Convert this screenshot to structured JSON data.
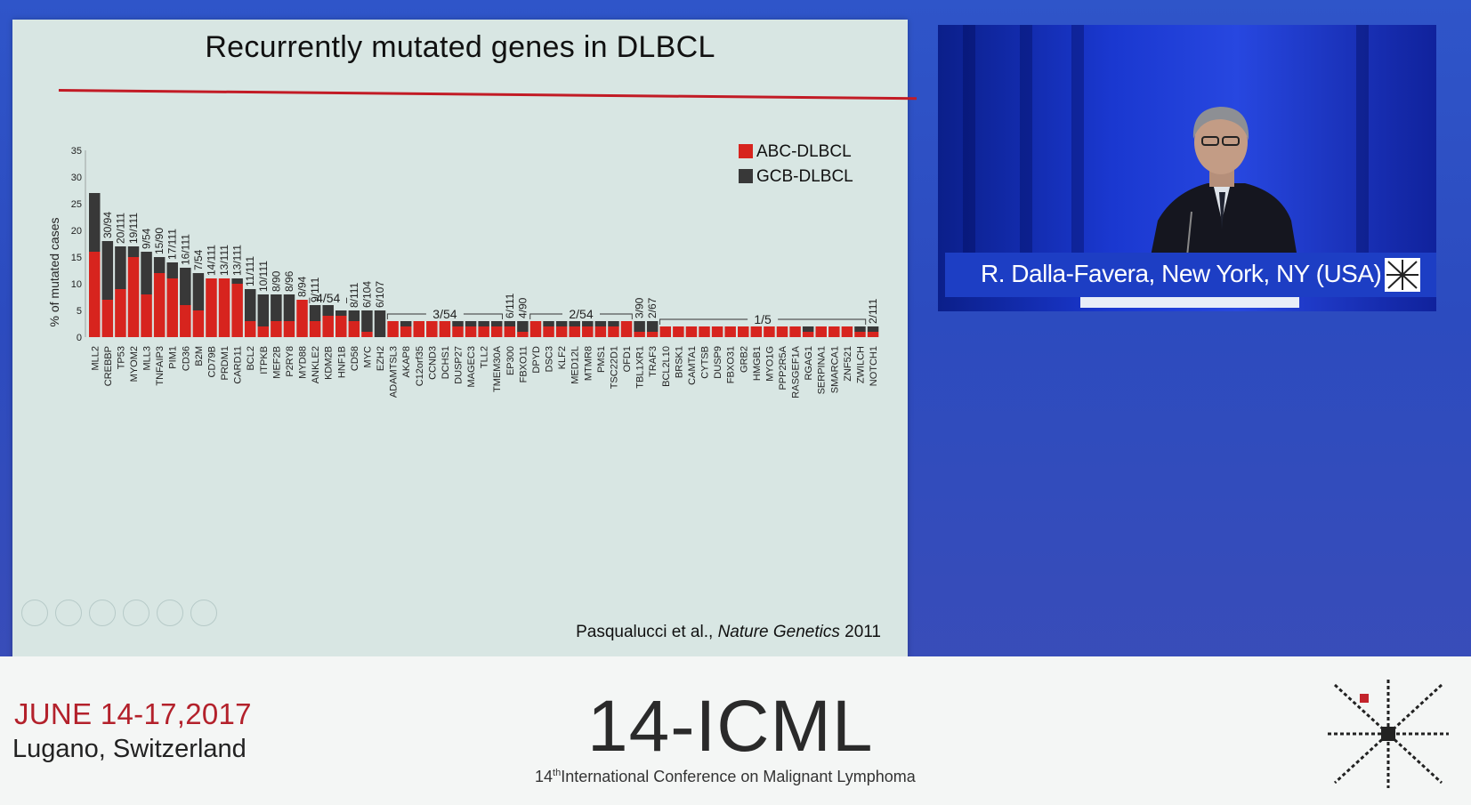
{
  "slide": {
    "title": "Recurrently mutated genes in DLBCL",
    "citation_authors": "Pasqualucci et al., ",
    "citation_journal": "Nature Genetics",
    "citation_year": " 2011"
  },
  "chart_data": {
    "type": "bar",
    "stacked": true,
    "title": "Recurrently mutated genes in DLBCL",
    "xlabel": "",
    "ylabel": "% of mutated cases",
    "ylim": [
      0,
      35
    ],
    "yticks": [
      0,
      5,
      10,
      15,
      20,
      25,
      30,
      35
    ],
    "grid": false,
    "legend_position": "top-right",
    "categories": [
      "MLL2",
      "CREBBP",
      "TP53",
      "MYOM2",
      "MLL3",
      "TNFAIP3",
      "PIM1",
      "CD36",
      "B2M",
      "CD79B",
      "PRDM1",
      "CARD11",
      "BCL2",
      "ITPKB",
      "MEF2B",
      "P2RY8",
      "MYD88",
      "ANKLE2",
      "KDM2B",
      "HNF1B",
      "CD58",
      "MYC",
      "EZH2",
      "ADAMTSL3",
      "AKAP8",
      "C12orf35",
      "CCND3",
      "DCHS1",
      "DUSP27",
      "MAGEC3",
      "TLL2",
      "TMEM30A",
      "EP300",
      "FBXO11",
      "DPYD",
      "DSC3",
      "KLF2",
      "MED12L",
      "MTMR8",
      "PMS1",
      "TSC22D1",
      "OFD1",
      "TBL1XR1",
      "TRAF3",
      "BCL2L10",
      "BRSK1",
      "CAMTA1",
      "CYTSB",
      "DUSP9",
      "FBXO31",
      "GRB2",
      "HMGB1",
      "MYO1G",
      "PPP2R5A",
      "RASGEF1A",
      "RGAG1",
      "SERPINA1",
      "SMARCA1",
      "ZNF521",
      "ZWILCH",
      "NOTCH1"
    ],
    "series": [
      {
        "name": "ABC-DLBCL",
        "color": "#d7241e",
        "values": [
          16,
          7,
          9,
          15,
          8,
          12,
          11,
          6,
          5,
          11,
          11,
          10,
          3,
          2,
          3,
          3,
          7,
          3,
          4,
          4,
          3,
          1,
          0,
          3,
          2,
          3,
          3,
          3,
          2,
          2,
          2,
          2,
          2,
          1,
          3,
          2,
          2,
          2,
          2,
          2,
          2,
          3,
          1,
          1,
          2,
          2,
          2,
          2,
          2,
          2,
          2,
          2,
          2,
          2,
          2,
          1,
          2,
          2,
          2,
          1,
          1
        ]
      },
      {
        "name": "GCB-DLBCL",
        "color": "#383838",
        "values": [
          11,
          11,
          8,
          2,
          8,
          3,
          3,
          7,
          7,
          0,
          0,
          1,
          6,
          6,
          5,
          5,
          0,
          3,
          2,
          1,
          2,
          4,
          5,
          0,
          1,
          0,
          0,
          0,
          1,
          1,
          1,
          1,
          1,
          2,
          0,
          1,
          1,
          1,
          1,
          1,
          1,
          0,
          2,
          2,
          0,
          0,
          0,
          0,
          0,
          0,
          0,
          0,
          0,
          0,
          0,
          1,
          0,
          0,
          0,
          1,
          1
        ]
      }
    ],
    "annotations_vertical": [
      {
        "category": "CREBBP",
        "text": "30/94"
      },
      {
        "category": "TP53",
        "text": "20/111"
      },
      {
        "category": "MYOM2",
        "text": "19/111"
      },
      {
        "category": "MLL3",
        "text": "9/54"
      },
      {
        "category": "TNFAIP3",
        "text": "15/90"
      },
      {
        "category": "PIM1",
        "text": "17/111"
      },
      {
        "category": "CD36",
        "text": "16/111"
      },
      {
        "category": "B2M",
        "text": "7/54"
      },
      {
        "category": "CD79B",
        "text": "14/111"
      },
      {
        "category": "PRDM1",
        "text": "13/111"
      },
      {
        "category": "CARD11",
        "text": "13/111"
      },
      {
        "category": "BCL2",
        "text": "11/111"
      },
      {
        "category": "ITPKB",
        "text": "10/111"
      },
      {
        "category": "MEF2B",
        "text": "8/90"
      },
      {
        "category": "P2RY8",
        "text": "8/96"
      },
      {
        "category": "MYD88",
        "text": "8/94"
      },
      {
        "category": "ANKLE2",
        "text": "9/111"
      },
      {
        "category": "CD58",
        "text": "8/111"
      },
      {
        "category": "MYC",
        "text": "6/104"
      },
      {
        "category": "EZH2",
        "text": "6/107"
      },
      {
        "category": "EP300",
        "text": "6/111"
      },
      {
        "category": "FBXO11",
        "text": "4/90"
      },
      {
        "category": "TBL1XR1",
        "text": "3/90"
      },
      {
        "category": "TRAF3",
        "text": "2/67"
      },
      {
        "category": "NOTCH1",
        "text": "2/111"
      }
    ],
    "annotations_bracket": [
      {
        "text": "4/54",
        "from": "ANKLE2",
        "to": "HNF1B"
      },
      {
        "text": "3/54",
        "from": "ADAMTSL3",
        "to": "TMEM30A"
      },
      {
        "text": "2/54",
        "from": "DPYD",
        "to": "OFD1"
      },
      {
        "text": "1/5",
        "from": "BCL2L10",
        "to": "ZWILCH"
      }
    ]
  },
  "video": {
    "caption": "R. Dalla-Favera, New York, NY (USA)"
  },
  "conference": {
    "dates": "JUNE 14-17,2017",
    "place": "Lugano, Switzerland",
    "short_name": "14-ICML",
    "full_name_sup": "th",
    "full_name_number": "14",
    "full_name": "International Conference on Malignant Lymphoma"
  }
}
